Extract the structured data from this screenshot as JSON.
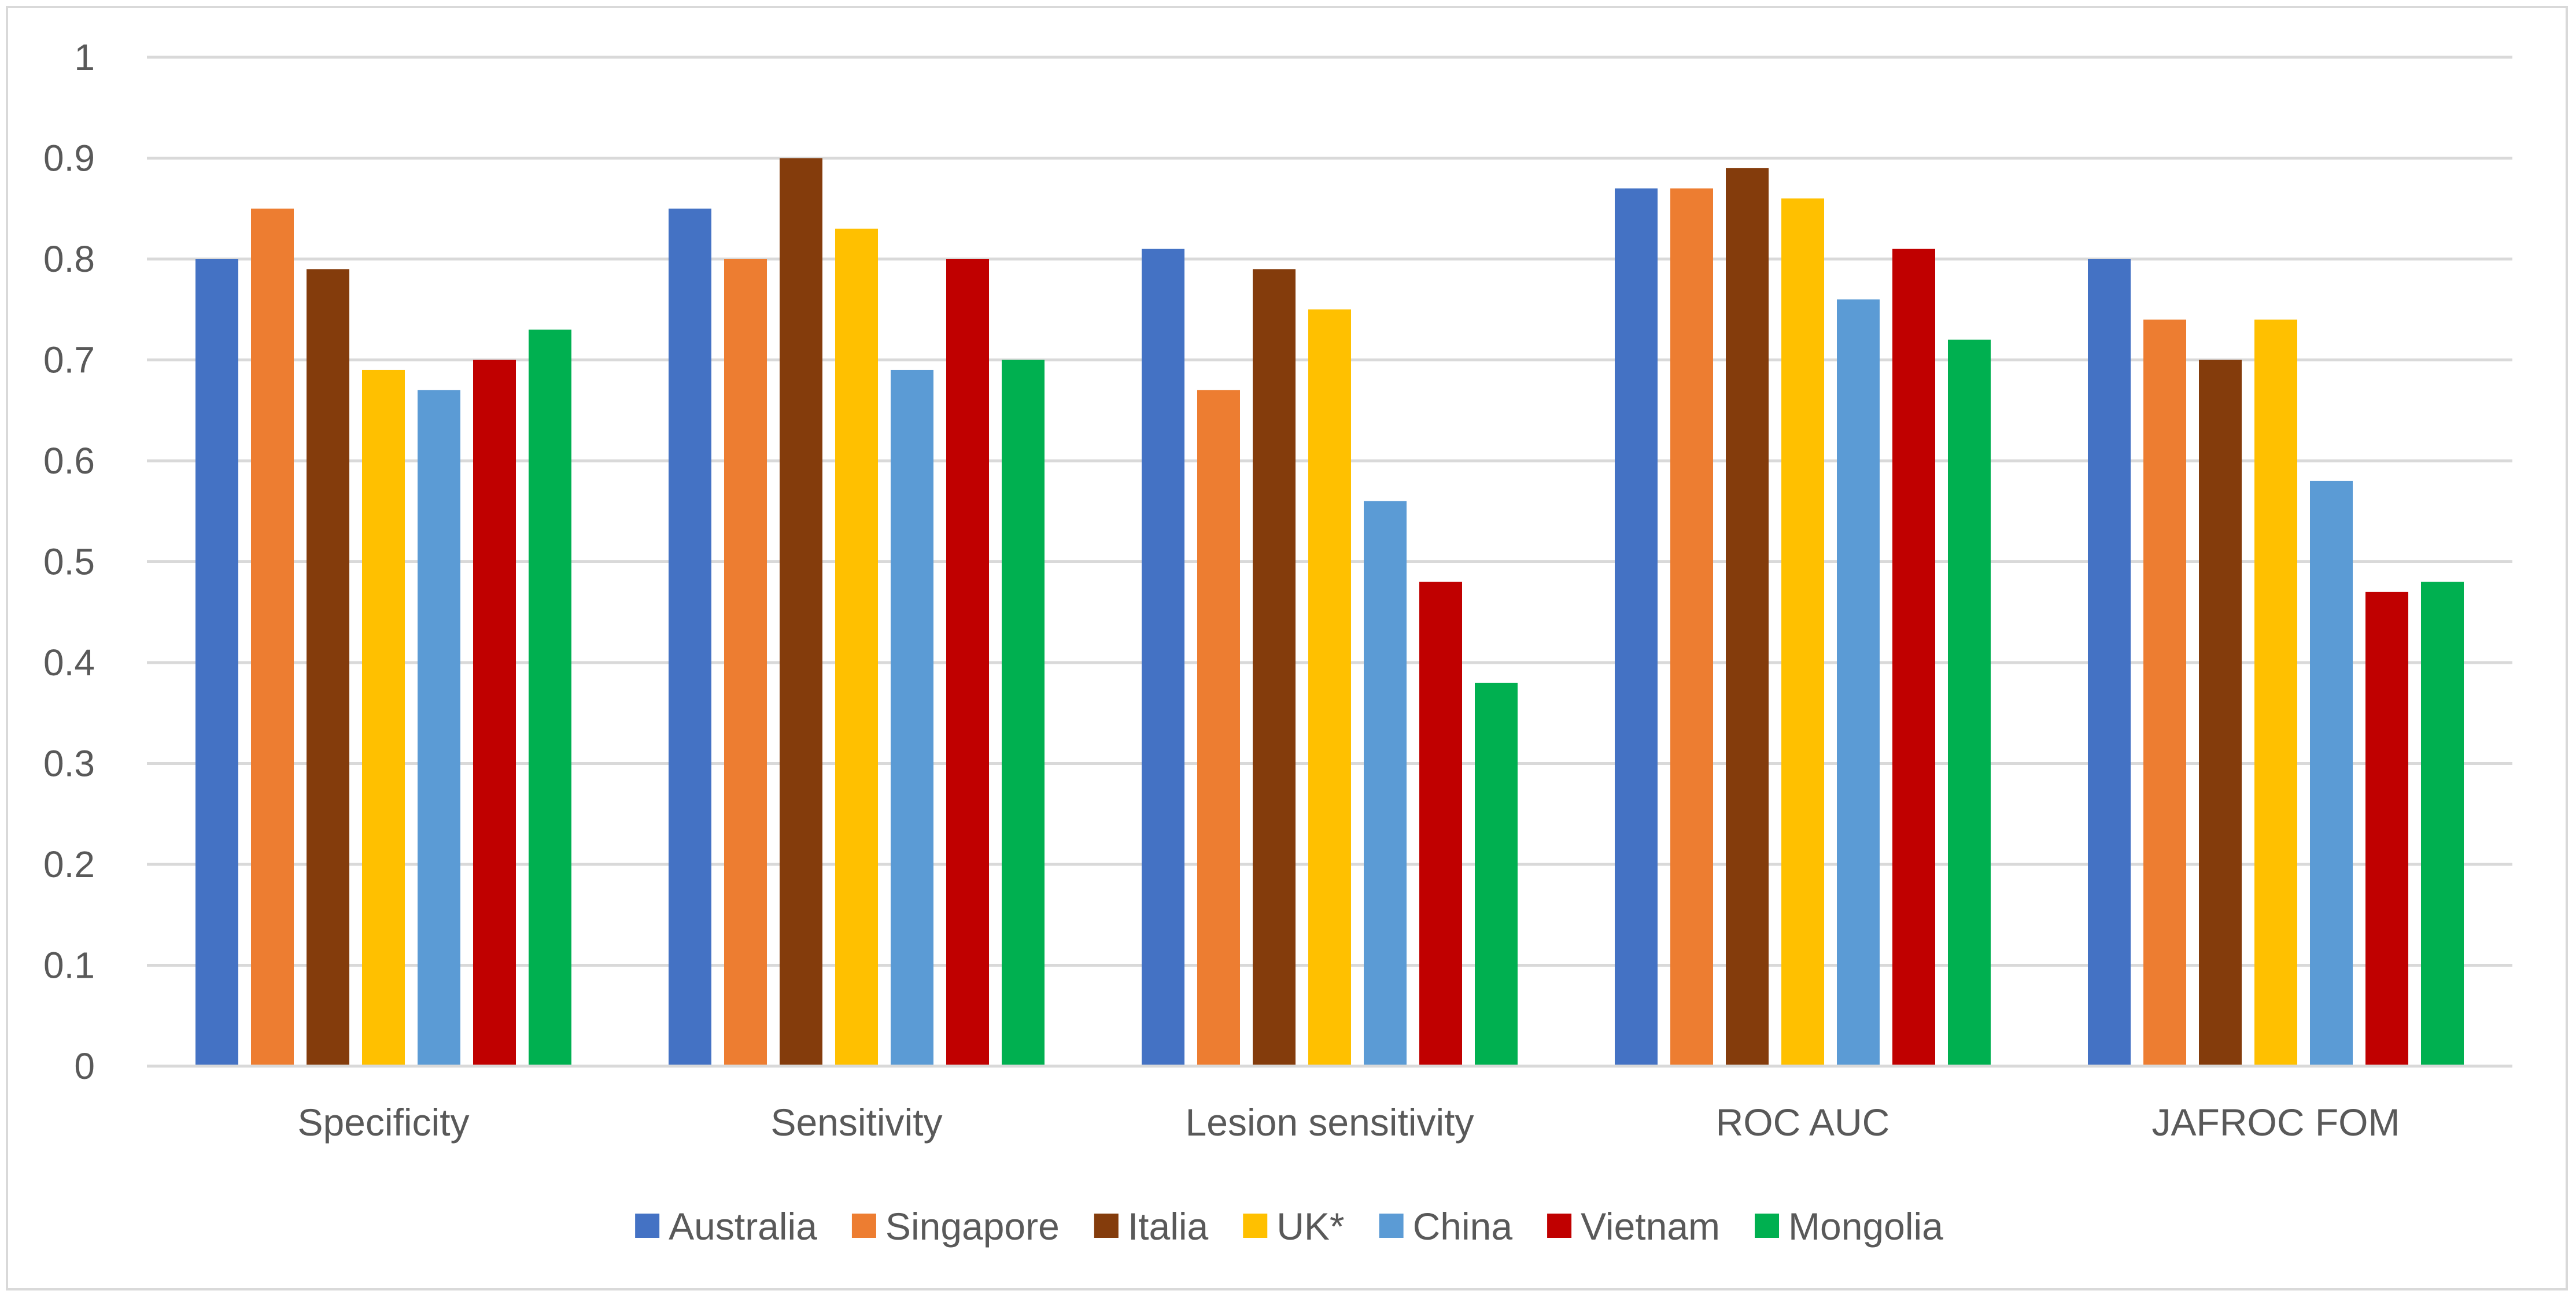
{
  "chart_data": {
    "type": "bar",
    "title": "",
    "xlabel": "",
    "ylabel": "",
    "ylim": [
      0,
      1
    ],
    "yticks": [
      "0",
      "0.1",
      "0.2",
      "0.3",
      "0.4",
      "0.5",
      "0.6",
      "0.7",
      "0.8",
      "0.9",
      "1"
    ],
    "grid": true,
    "legend_position": "bottom",
    "categories": [
      "Specificity",
      "Sensitivity",
      "Lesion sensitivity",
      "ROC AUC",
      "JAFROC FOM"
    ],
    "series": [
      {
        "name": "Australia",
        "color": "#4472c4",
        "values": [
          0.8,
          0.85,
          0.81,
          0.87,
          0.8
        ]
      },
      {
        "name": "Singapore",
        "color": "#ed7d31",
        "values": [
          0.85,
          0.8,
          0.67,
          0.87,
          0.74
        ]
      },
      {
        "name": "Italia",
        "color": "#843c0c",
        "values": [
          0.79,
          0.9,
          0.79,
          0.89,
          0.7
        ]
      },
      {
        "name": "UK*",
        "color": "#ffc000",
        "values": [
          0.69,
          0.83,
          0.75,
          0.86,
          0.74
        ]
      },
      {
        "name": "China",
        "color": "#5b9bd5",
        "values": [
          0.67,
          0.69,
          0.56,
          0.76,
          0.58
        ]
      },
      {
        "name": "Vietnam",
        "color": "#c00000",
        "values": [
          0.7,
          0.8,
          0.48,
          0.81,
          0.47
        ]
      },
      {
        "name": "Mongolia",
        "color": "#00b050",
        "values": [
          0.73,
          0.7,
          0.38,
          0.72,
          0.48
        ]
      }
    ]
  }
}
